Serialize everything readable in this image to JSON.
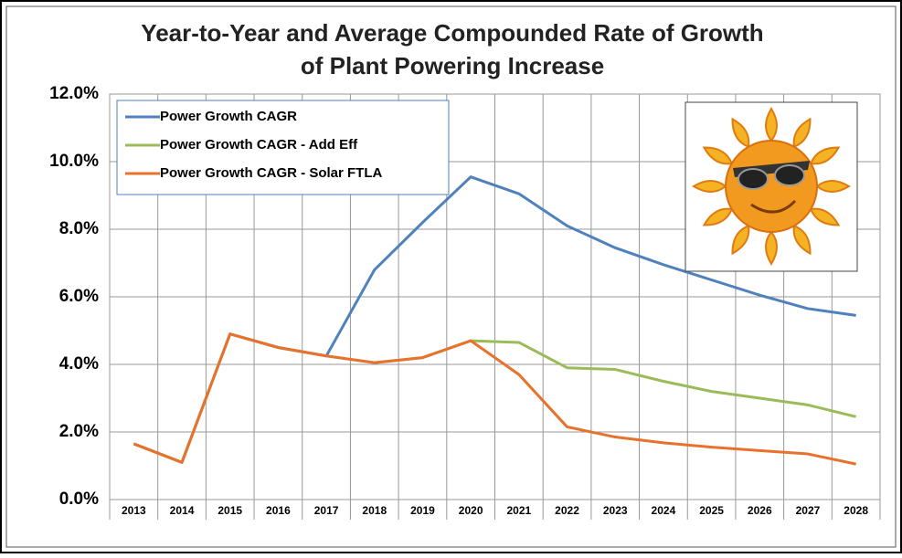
{
  "chart_data": {
    "type": "line",
    "title": [
      "Year-to-Year and Average Compounded Rate of Growth",
      "of Plant Powering Increase"
    ],
    "categories": [
      "2013",
      "2014",
      "2015",
      "2016",
      "2017",
      "2018",
      "2019",
      "2020",
      "2021",
      "2022",
      "2023",
      "2024",
      "2025",
      "2026",
      "2027",
      "2028"
    ],
    "series": [
      {
        "name": "Power Growth CAGR",
        "color": "#4f81bd",
        "values": [
          1.65,
          1.1,
          4.9,
          4.5,
          4.25,
          6.8,
          8.2,
          9.55,
          9.05,
          8.1,
          7.45,
          6.95,
          6.5,
          6.05,
          5.65,
          5.45
        ]
      },
      {
        "name": "Power Growth CAGR - Add Eff",
        "color": "#9bbb59",
        "values": [
          1.65,
          1.1,
          4.9,
          4.5,
          4.25,
          4.05,
          4.2,
          4.7,
          4.65,
          3.9,
          3.85,
          3.5,
          3.2,
          3.0,
          2.8,
          2.45
        ]
      },
      {
        "name": "Power Growth CAGR - Solar FTLA",
        "color": "#e8712b",
        "values": [
          1.65,
          1.1,
          4.9,
          4.5,
          4.25,
          4.05,
          4.2,
          4.7,
          3.7,
          2.15,
          1.85,
          1.68,
          1.55,
          1.45,
          1.35,
          1.05
        ]
      }
    ],
    "ylim": [
      0,
      12
    ],
    "yticks": [
      {
        "value": 0,
        "label": "0.0%"
      },
      {
        "value": 2,
        "label": "2.0%"
      },
      {
        "value": 4,
        "label": "4.0%"
      },
      {
        "value": 6,
        "label": "6.0%"
      },
      {
        "value": 8,
        "label": "8.0%"
      },
      {
        "value": 10,
        "label": "10.0%"
      },
      {
        "value": 12,
        "label": "12.0%"
      }
    ],
    "grid": true
  }
}
